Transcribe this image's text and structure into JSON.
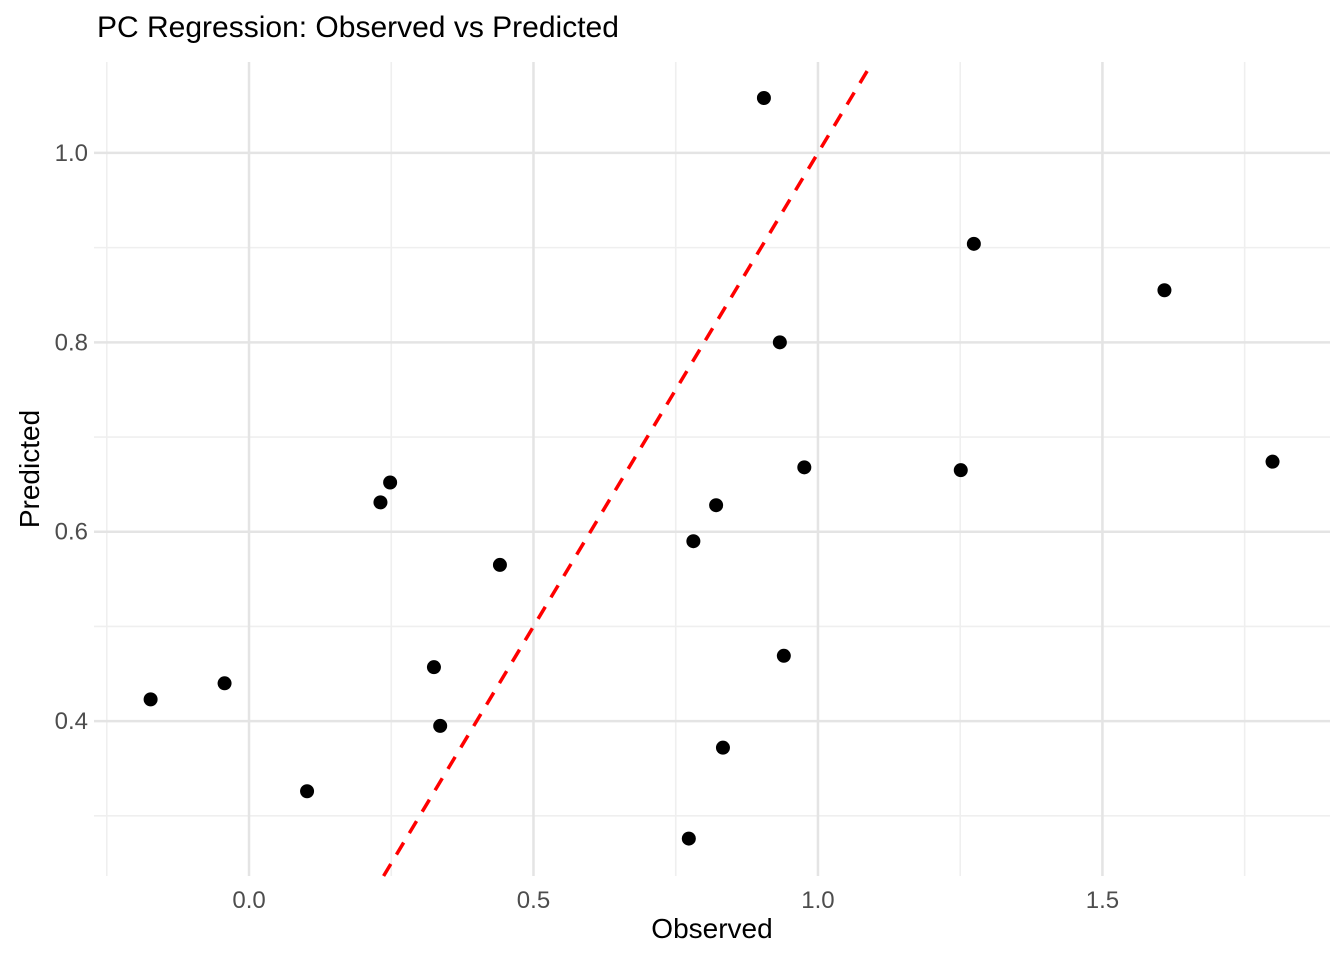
{
  "chart_data": {
    "type": "scatter",
    "title": "PC Regression: Observed vs Predicted",
    "xlabel": "Observed",
    "ylabel": "Predicted",
    "x_ticks": {
      "values": [
        0.0,
        0.5,
        1.0,
        1.5
      ],
      "labels": [
        "0.0",
        "0.5",
        "1.0",
        "1.5"
      ]
    },
    "y_ticks": {
      "values": [
        0.4,
        0.6,
        0.8,
        1.0
      ],
      "labels": [
        "0.4",
        "0.6",
        "0.8",
        "1.0"
      ]
    },
    "x_minor": [
      -0.25,
      0.25,
      0.75,
      1.25,
      1.75
    ],
    "y_minor": [
      0.3,
      0.5,
      0.7,
      0.9
    ],
    "xlim": [
      -0.2725,
      1.9
    ],
    "ylim": [
      0.2365,
      1.096
    ],
    "grid": true,
    "legend_position": "none",
    "points": [
      [
        -0.173,
        0.423
      ],
      [
        -0.043,
        0.44
      ],
      [
        0.102,
        0.326
      ],
      [
        0.231,
        0.631
      ],
      [
        0.248,
        0.652
      ],
      [
        0.325,
        0.457
      ],
      [
        0.336,
        0.395
      ],
      [
        0.441,
        0.565
      ],
      [
        0.773,
        0.276
      ],
      [
        0.781,
        0.59
      ],
      [
        0.821,
        0.628
      ],
      [
        0.833,
        0.372
      ],
      [
        0.905,
        1.058
      ],
      [
        0.933,
        0.8
      ],
      [
        0.94,
        0.469
      ],
      [
        0.976,
        0.668
      ],
      [
        1.251,
        0.665
      ],
      [
        1.274,
        0.904
      ],
      [
        1.609,
        0.855
      ],
      [
        1.799,
        0.674
      ]
    ],
    "identity_line": {
      "slope": 1,
      "intercept": 0,
      "style": "dashed",
      "color": "#FF0000"
    },
    "point_color": "#000000",
    "grid_major_color": "#E4E4E4",
    "grid_minor_color": "#EFEFEF",
    "tick_label_color": "#4d4d4d"
  }
}
